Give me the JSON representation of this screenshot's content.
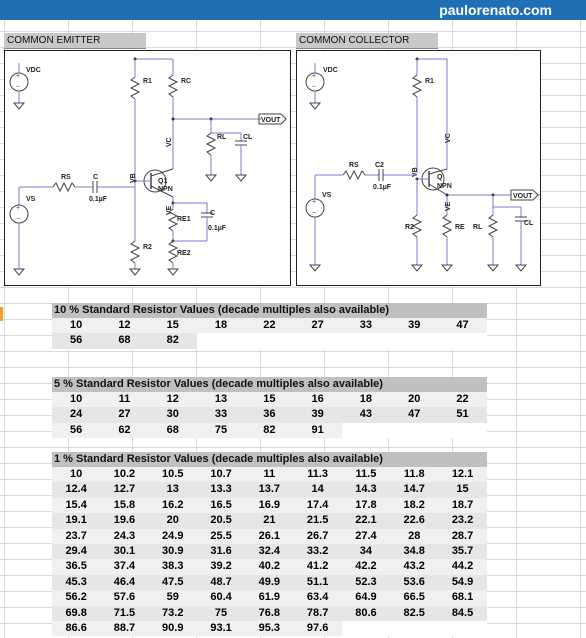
{
  "brand": "paulorenato.com",
  "sections": {
    "common_emitter": "COMMON EMITTER",
    "common_collector": "COMMON COLLECTOR"
  },
  "ce": {
    "vdc": "VDC",
    "r1": "R1",
    "rc": "RC",
    "vout": "VOUT",
    "rl": "RL",
    "cl": "CL",
    "vc": "VC",
    "rs": "RS",
    "c": "C",
    "c_val": "0.1µF",
    "vb": "VB",
    "q1": "Q1",
    "npn": "NPN",
    "vs": "VS",
    "ve": "VE",
    "re1": "RE1",
    "c2": "C",
    "c2_val": "0.1µF",
    "r2": "R2",
    "re2": "RE2"
  },
  "cc": {
    "vdc": "VDC",
    "r1": "R1",
    "vc": "VC",
    "rs": "RS",
    "c2": "C2",
    "c2_val": "0.1µF",
    "vb": "VB",
    "q": "Q",
    "npn": "NPN",
    "vout": "VOUT",
    "vs": "VS",
    "ve": "VE",
    "r2": "R2",
    "re": "RE",
    "rl": "RL",
    "cl": "CL"
  },
  "tables": [
    {
      "title": "10 % Standard Resistor Values (decade multiples also available)",
      "rows": [
        [
          "10",
          "12",
          "15",
          "18",
          "22",
          "27",
          "33",
          "39",
          "47"
        ],
        [
          "56",
          "68",
          "82"
        ]
      ]
    },
    {
      "title": "5 % Standard Resistor Values (decade multiples also available)",
      "rows": [
        [
          "10",
          "11",
          "12",
          "13",
          "15",
          "16",
          "18",
          "20",
          "22"
        ],
        [
          "24",
          "27",
          "30",
          "33",
          "36",
          "39",
          "43",
          "47",
          "51"
        ],
        [
          "56",
          "62",
          "68",
          "75",
          "82",
          "91"
        ]
      ]
    },
    {
      "title": "1 % Standard Resistor Values (decade multiples also available)",
      "rows": [
        [
          "10",
          "10.2",
          "10.5",
          "10.7",
          "11",
          "11.3",
          "11.5",
          "11.8",
          "12.1"
        ],
        [
          "12.4",
          "12.7",
          "13",
          "13.3",
          "13.7",
          "14",
          "14.3",
          "14.7",
          "15"
        ],
        [
          "15.4",
          "15.8",
          "16.2",
          "16.5",
          "16.9",
          "17.4",
          "17.8",
          "18.2",
          "18.7"
        ],
        [
          "19.1",
          "19.6",
          "20",
          "20.5",
          "21",
          "21.5",
          "22.1",
          "22.6",
          "23.2"
        ],
        [
          "23.7",
          "24.3",
          "24.9",
          "25.5",
          "26.1",
          "26.7",
          "27.4",
          "28",
          "28.7"
        ],
        [
          "29.4",
          "30.1",
          "30.9",
          "31.6",
          "32.4",
          "33.2",
          "34",
          "34.8",
          "35.7"
        ],
        [
          "36.5",
          "37.4",
          "38.3",
          "39.2",
          "40.2",
          "41.2",
          "42.2",
          "43.2",
          "44.2"
        ],
        [
          "45.3",
          "46.4",
          "47.5",
          "48.7",
          "49.9",
          "51.1",
          "52.3",
          "53.6",
          "54.9"
        ],
        [
          "56.2",
          "57.6",
          "59",
          "60.4",
          "61.9",
          "63.4",
          "64.9",
          "66.5",
          "68.1"
        ],
        [
          "69.8",
          "71.5",
          "73.2",
          "75",
          "76.8",
          "78.7",
          "80.6",
          "82.5",
          "84.5"
        ],
        [
          "86.6",
          "88.7",
          "90.9",
          "93.1",
          "95.3",
          "97.6"
        ]
      ]
    }
  ]
}
